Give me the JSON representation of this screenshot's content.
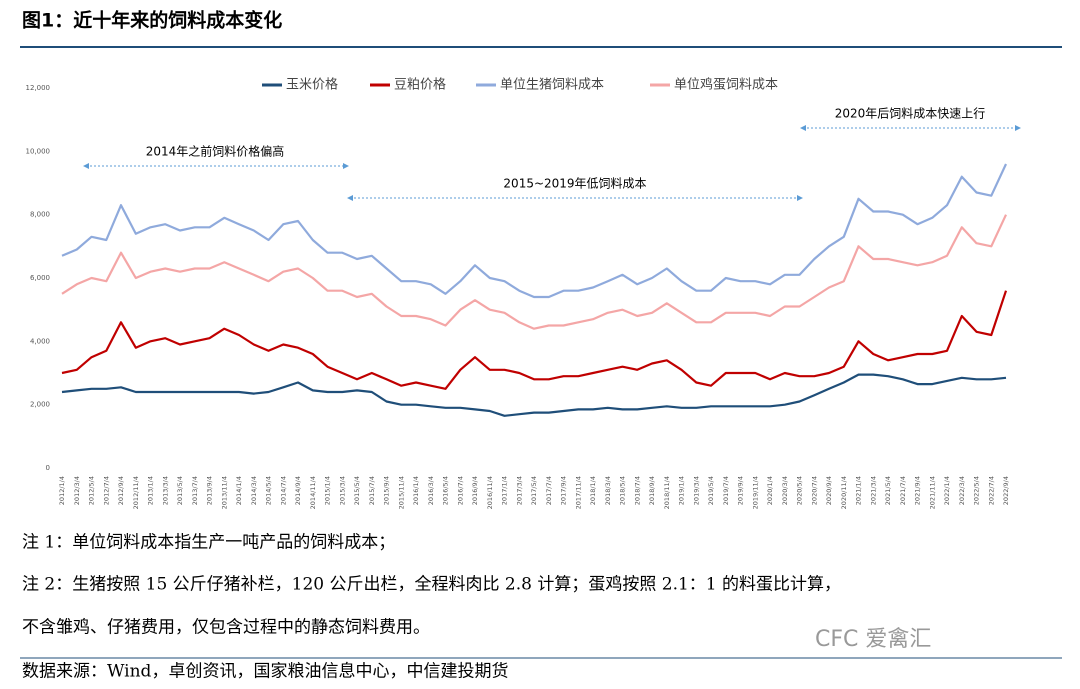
{
  "header": {
    "title": "图1：近十年来的饲料成本变化"
  },
  "chart_data": {
    "type": "line",
    "x": [
      "2012/1/4",
      "2012/3/4",
      "2012/5/4",
      "2012/7/4",
      "2012/9/4",
      "2012/11/4",
      "2013/1/4",
      "2013/3/4",
      "2013/5/4",
      "2013/7/4",
      "2013/9/4",
      "2013/11/4",
      "2014/1/4",
      "2014/3/4",
      "2014/5/4",
      "2014/7/4",
      "2014/9/4",
      "2014/11/4",
      "2015/1/4",
      "2015/3/4",
      "2015/5/4",
      "2015/7/4",
      "2015/9/4",
      "2015/11/4",
      "2016/1/4",
      "2016/3/4",
      "2016/5/4",
      "2016/7/4",
      "2016/9/4",
      "2016/11/4",
      "2017/1/4",
      "2017/3/4",
      "2017/5/4",
      "2017/7/4",
      "2017/9/4",
      "2017/11/4",
      "2018/1/4",
      "2018/3/4",
      "2018/5/4",
      "2018/7/4",
      "2018/9/4",
      "2018/11/4",
      "2019/1/4",
      "2019/3/4",
      "2019/5/4",
      "2019/7/4",
      "2019/9/4",
      "2019/11/4",
      "2020/1/4",
      "2020/3/4",
      "2020/5/4",
      "2020/7/4",
      "2020/9/4",
      "2020/11/4",
      "2021/1/4",
      "2021/3/4",
      "2021/5/4",
      "2021/7/4",
      "2021/9/4",
      "2021/11/4",
      "2022/1/4",
      "2022/3/4",
      "2022/5/4",
      "2022/7/4",
      "2022/9/4"
    ],
    "series": [
      {
        "name": "玉米价格",
        "color": "#1f4e79",
        "values": [
          2400,
          2450,
          2500,
          2500,
          2550,
          2400,
          2400,
          2400,
          2400,
          2400,
          2400,
          2400,
          2400,
          2350,
          2400,
          2550,
          2700,
          2450,
          2400,
          2400,
          2450,
          2400,
          2100,
          2000,
          2000,
          1950,
          1900,
          1900,
          1850,
          1800,
          1650,
          1700,
          1750,
          1750,
          1800,
          1850,
          1850,
          1900,
          1850,
          1850,
          1900,
          1950,
          1900,
          1900,
          1950,
          1950,
          1950,
          1950,
          1950,
          2000,
          2100,
          2300,
          2500,
          2700,
          2950,
          2950,
          2900,
          2800,
          2650,
          2650,
          2750,
          2850,
          2800,
          2800,
          2850
        ]
      },
      {
        "name": "豆粕价格",
        "color": "#c00000",
        "values": [
          3000,
          3100,
          3500,
          3700,
          4600,
          3800,
          4000,
          4100,
          3900,
          4000,
          4100,
          4400,
          4200,
          3900,
          3700,
          3900,
          3800,
          3600,
          3200,
          3000,
          2800,
          3000,
          2800,
          2600,
          2700,
          2600,
          2500,
          3100,
          3500,
          3100,
          3100,
          3000,
          2800,
          2800,
          2900,
          2900,
          3000,
          3100,
          3200,
          3100,
          3300,
          3400,
          3100,
          2700,
          2600,
          3000,
          3000,
          3000,
          2800,
          3000,
          2900,
          2900,
          3000,
          3200,
          4000,
          3600,
          3400,
          3500,
          3600,
          3600,
          3700,
          4800,
          4300,
          4200,
          5600
        ]
      },
      {
        "name": "单位生猪饲料成本",
        "color": "#8faadc",
        "values": [
          6700,
          6900,
          7300,
          7200,
          8300,
          7400,
          7600,
          7700,
          7500,
          7600,
          7600,
          7900,
          7700,
          7500,
          7200,
          7700,
          7800,
          7200,
          6800,
          6800,
          6600,
          6700,
          6300,
          5900,
          5900,
          5800,
          5500,
          5900,
          6400,
          6000,
          5900,
          5600,
          5400,
          5400,
          5600,
          5600,
          5700,
          5900,
          6100,
          5800,
          6000,
          6300,
          5900,
          5600,
          5600,
          6000,
          5900,
          5900,
          5800,
          6100,
          6100,
          6600,
          7000,
          7300,
          8500,
          8100,
          8100,
          8000,
          7700,
          7900,
          8300,
          9200,
          8700,
          8600,
          9600
        ]
      },
      {
        "name": "单位鸡蛋饲料成本",
        "color": "#f4a6a6",
        "values": [
          5500,
          5800,
          6000,
          5900,
          6800,
          6000,
          6200,
          6300,
          6200,
          6300,
          6300,
          6500,
          6300,
          6100,
          5900,
          6200,
          6300,
          6000,
          5600,
          5600,
          5400,
          5500,
          5100,
          4800,
          4800,
          4700,
          4500,
          5000,
          5300,
          5000,
          4900,
          4600,
          4400,
          4500,
          4500,
          4600,
          4700,
          4900,
          5000,
          4800,
          4900,
          5200,
          4900,
          4600,
          4600,
          4900,
          4900,
          4900,
          4800,
          5100,
          5100,
          5400,
          5700,
          5900,
          7000,
          6600,
          6600,
          6500,
          6400,
          6500,
          6700,
          7600,
          7100,
          7000,
          8000
        ]
      }
    ],
    "ylim": [
      0,
      12000
    ],
    "yticks": [
      0,
      {
        "value": 2000,
        "label": "2,000"
      },
      {
        "value": 4000,
        "label": "4,000"
      },
      {
        "value": 6000,
        "label": "6,000"
      },
      {
        "value": 8000,
        "label": "8,000"
      },
      {
        "value": 10000,
        "label": "10,000"
      },
      {
        "value": 12000,
        "label": "12,000"
      }
    ],
    "annotations": [
      "2014年之前饲料价格偏高",
      "2015~2019年低饲料成本",
      "2020年后饲料成本快速上行"
    ],
    "legend": "top"
  },
  "notes": [
    "注 1：单位饲料成本指生产一吨产品的饲料成本；",
    "注 2：生猪按照 15 公斤仔猪补栏，120 公斤出栏，全程料肉比 2.8 计算；蛋鸡按照 2.1：1 的料蛋比计算，",
    "不含雏鸡、仔猪费用，仅包含过程中的静态饲料费用。"
  ],
  "watermark": "CFC 爱禽汇",
  "source": "数据来源：Wind，卓创资讯，国家粮油信息中心，中信建投期货"
}
